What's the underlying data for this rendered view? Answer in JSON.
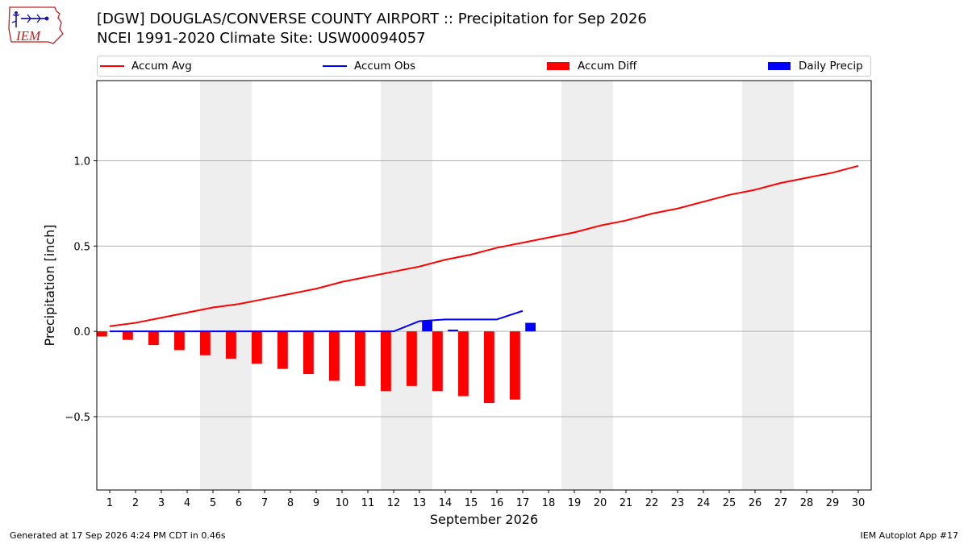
{
  "logo": {
    "text": "IEM"
  },
  "header": {
    "title_line1": "[DGW] DOUGLAS/CONVERSE COUNTY AIRPORT :: Precipitation for Sep 2026",
    "title_line2": "NCEI 1991-2020 Climate Site: USW00094057"
  },
  "legend": {
    "position": "top",
    "items": [
      {
        "label": "Accum Avg",
        "kind": "line",
        "color": "#ff0000"
      },
      {
        "label": "Accum Obs",
        "kind": "line",
        "color": "#0000ff"
      },
      {
        "label": "Accum Diff",
        "kind": "bar",
        "color": "#ff0000"
      },
      {
        "label": "Daily Precip",
        "kind": "bar",
        "color": "#0000ff"
      }
    ]
  },
  "footer": {
    "left": "Generated at 17 Sep 2026 4:24 PM CDT in 0.46s",
    "right": "IEM Autoplot App #17"
  },
  "colors": {
    "avg": "#ff0000",
    "obs": "#0000ff",
    "diff": "#ff0000",
    "daily": "#0000ff",
    "weekend_shade": "#eeeeee",
    "grid": "#b0b0b0"
  },
  "chart_data": {
    "type": "line",
    "title": "[DGW] DOUGLAS/CONVERSE COUNTY AIRPORT :: Precipitation for Sep 2026",
    "subtitle": "NCEI 1991-2020 Climate Site: USW00094057",
    "xlabel": "September 2026",
    "ylabel": "Precipitation [inch]",
    "x": [
      1,
      2,
      3,
      4,
      5,
      6,
      7,
      8,
      9,
      10,
      11,
      12,
      13,
      14,
      15,
      16,
      17,
      18,
      19,
      20,
      21,
      22,
      23,
      24,
      25,
      26,
      27,
      28,
      29,
      30
    ],
    "x_tick_labels": [
      "1",
      "2",
      "3",
      "4",
      "5",
      "6",
      "7",
      "8",
      "9",
      "10",
      "11",
      "12",
      "13",
      "14",
      "15",
      "16",
      "17",
      "18",
      "19",
      "20",
      "21",
      "22",
      "23",
      "24",
      "25",
      "26",
      "27",
      "28",
      "29",
      "30"
    ],
    "xlim": [
      0.5,
      30.5
    ],
    "ylim": [
      -0.93,
      1.47
    ],
    "y_ticks": [
      -0.5,
      0.0,
      0.5,
      1.0
    ],
    "y_tick_labels": [
      "−0.5",
      "0.0",
      "0.5",
      "1.0"
    ],
    "grid": "horizontal",
    "legend_placement": "top",
    "shaded_weekends": [
      [
        5,
        6
      ],
      [
        12,
        13
      ],
      [
        19,
        20
      ],
      [
        26,
        27
      ]
    ],
    "series": [
      {
        "name": "Accum Avg",
        "kind": "line",
        "x": [
          1,
          2,
          3,
          4,
          5,
          6,
          7,
          8,
          9,
          10,
          11,
          12,
          13,
          14,
          15,
          16,
          17,
          18,
          19,
          20,
          21,
          22,
          23,
          24,
          25,
          26,
          27,
          28,
          29,
          30
        ],
        "values": [
          0.03,
          0.05,
          0.08,
          0.11,
          0.14,
          0.16,
          0.19,
          0.22,
          0.25,
          0.29,
          0.32,
          0.35,
          0.38,
          0.42,
          0.45,
          0.49,
          0.52,
          0.55,
          0.58,
          0.62,
          0.65,
          0.69,
          0.72,
          0.76,
          0.8,
          0.83,
          0.87,
          0.9,
          0.93,
          0.97
        ]
      },
      {
        "name": "Accum Obs",
        "kind": "line",
        "x": [
          1,
          2,
          3,
          4,
          5,
          6,
          7,
          8,
          9,
          10,
          11,
          12,
          13,
          14,
          15,
          16,
          17
        ],
        "values": [
          0,
          0,
          0,
          0,
          0,
          0,
          0,
          0,
          0,
          0,
          0,
          0,
          0.06,
          0.07,
          0.07,
          0.07,
          0.12
        ]
      },
      {
        "name": "Accum Diff",
        "kind": "bar",
        "x": [
          1,
          2,
          3,
          4,
          5,
          6,
          7,
          8,
          9,
          10,
          11,
          12,
          13,
          14,
          15,
          16,
          17
        ],
        "values": [
          -0.03,
          -0.05,
          -0.08,
          -0.11,
          -0.14,
          -0.16,
          -0.19,
          -0.22,
          -0.25,
          -0.29,
          -0.32,
          -0.35,
          -0.32,
          -0.35,
          -0.38,
          -0.42,
          -0.4
        ]
      },
      {
        "name": "Daily Precip",
        "kind": "bar",
        "x": [
          1,
          2,
          3,
          4,
          5,
          6,
          7,
          8,
          9,
          10,
          11,
          12,
          13,
          14,
          15,
          16,
          17
        ],
        "values": [
          0,
          0,
          0,
          0,
          0,
          0,
          0,
          0,
          0,
          0,
          0,
          0,
          0.06,
          0.01,
          0,
          0,
          0.05
        ]
      }
    ]
  }
}
